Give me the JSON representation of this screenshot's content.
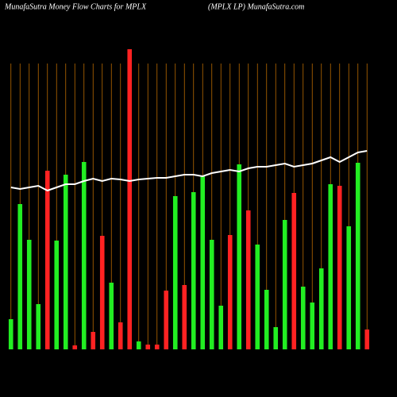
{
  "chart_data": {
    "type": "bar",
    "title": "MunafaSutra  Money Flow  Charts for MPLX",
    "subtitle": "(MPLX  LP) MunafaSutra.com",
    "ylim": [
      0,
      380
    ],
    "grid": true,
    "grid_color": "#b86a00",
    "categories": [
      null,
      null,
      null,
      null,
      null,
      null,
      null,
      null,
      null,
      null,
      null,
      null,
      null,
      null,
      null,
      null,
      null,
      null,
      null,
      null,
      null,
      null,
      null,
      null,
      null,
      null,
      null,
      null,
      null,
      null,
      null,
      null,
      null,
      null,
      null,
      null,
      null,
      null,
      null,
      null
    ],
    "series": [
      {
        "values": [
          38,
          183,
          138,
          57,
          225,
          137,
          220,
          5,
          236,
          22,
          143,
          84,
          34,
          378,
          10,
          6,
          6,
          74,
          193,
          81,
          198,
          219,
          138,
          55,
          144,
          233,
          175,
          132,
          75,
          28,
          163,
          197,
          79,
          59,
          102,
          208,
          206,
          155,
          235,
          25
        ],
        "colors": [
          "#22ee22",
          "#22ee22",
          "#22ee22",
          "#22ee22",
          "#ff2222",
          "#22ee22",
          "#22ee22",
          "#ff2222",
          "#22ee22",
          "#ff2222",
          "#ff2222",
          "#22ee22",
          "#ff2222",
          "#ff2222",
          "#22ee22",
          "#ff2222",
          "#ff2222",
          "#ff2222",
          "#22ee22",
          "#ff2222",
          "#22ee22",
          "#22ee22",
          "#22ee22",
          "#22ee22",
          "#ff2222",
          "#22ee22",
          "#ff2222",
          "#22ee22",
          "#22ee22",
          "#22ee22",
          "#22ee22",
          "#ff2222",
          "#22ee22",
          "#22ee22",
          "#22ee22",
          "#22ee22",
          "#ff2222",
          "#22ee22",
          "#22ee22",
          "#ff2222"
        ]
      },
      {
        "type": "line",
        "color": "#ffffff",
        "values": [
          204,
          202,
          204,
          206,
          200,
          204,
          208,
          208,
          212,
          215,
          212,
          215,
          214,
          212,
          214,
          215,
          216,
          216,
          218,
          220,
          220,
          218,
          222,
          224,
          226,
          224,
          228,
          230,
          230,
          232,
          234,
          230,
          232,
          234,
          238,
          242,
          236,
          242,
          248,
          250
        ]
      }
    ]
  }
}
